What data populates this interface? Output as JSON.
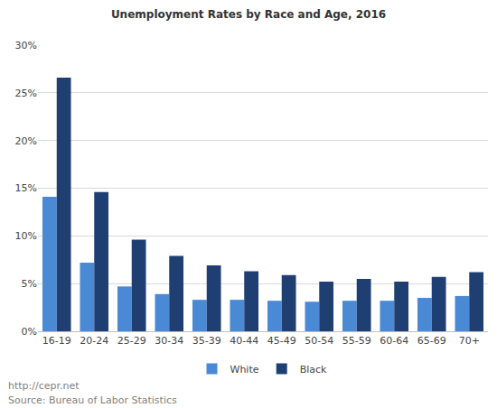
{
  "chart_data": {
    "type": "bar",
    "title": "Unemployment Rates by Race and Age, 2016",
    "categories": [
      "16-19",
      "20-24",
      "25-29",
      "30-34",
      "35-39",
      "40-44",
      "45-49",
      "50-54",
      "55-59",
      "60-64",
      "65-69",
      "70+"
    ],
    "series": [
      {
        "name": "White",
        "color": "#4a89d4",
        "values": [
          14.1,
          7.2,
          4.7,
          3.9,
          3.3,
          3.3,
          3.2,
          3.1,
          3.2,
          3.2,
          3.5,
          3.7
        ]
      },
      {
        "name": "Black",
        "color": "#1f3f73",
        "values": [
          26.6,
          14.6,
          9.6,
          7.9,
          6.9,
          6.3,
          5.9,
          5.2,
          5.5,
          5.2,
          5.7,
          6.2
        ]
      }
    ],
    "ylim": [
      0,
      30
    ],
    "yticks": [
      {
        "value": 0,
        "label": "0%"
      },
      {
        "value": 5,
        "label": "5%"
      },
      {
        "value": 10,
        "label": "10%"
      },
      {
        "value": 15,
        "label": "15%"
      },
      {
        "value": 20,
        "label": "20%"
      },
      {
        "value": 25,
        "label": "25%"
      },
      {
        "value": 30,
        "label": "30%"
      }
    ],
    "grid": true,
    "legend": "bottom",
    "annotations": [
      "http://cepr.net",
      "Source: Bureau of Labor Statistics"
    ]
  }
}
